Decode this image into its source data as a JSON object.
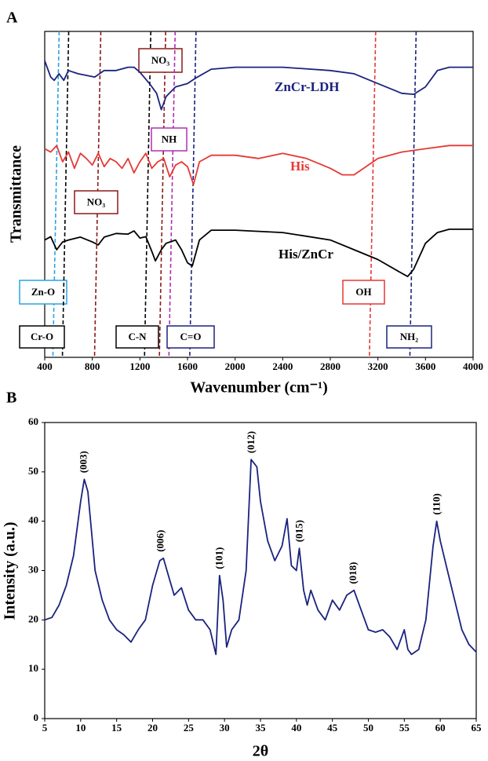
{
  "chart_data": [
    {
      "type": "line",
      "panel": "A",
      "xlabel": "Wavenumber (cm⁻¹)",
      "ylabel": "Transmittance",
      "xlim": [
        400,
        4000
      ],
      "xticks": [
        400,
        800,
        1200,
        1600,
        2000,
        2400,
        2800,
        3200,
        3600,
        4000
      ],
      "ylim": [
        0,
        100
      ],
      "series": [
        {
          "name": "ZnCr-LDH",
          "color": "#1a237e",
          "x": [
            400,
            450,
            480,
            520,
            560,
            600,
            680,
            820,
            900,
            1000,
            1100,
            1150,
            1200,
            1280,
            1340,
            1380,
            1420,
            1500,
            1600,
            1660,
            1800,
            2000,
            2400,
            2800,
            3000,
            3200,
            3400,
            3500,
            3600,
            3700,
            3800,
            4000
          ],
          "values": [
            91,
            86,
            85,
            87,
            85,
            88,
            87,
            86,
            88,
            88,
            89,
            89,
            87.5,
            84,
            81,
            76,
            80,
            83,
            84,
            85.5,
            88.4,
            89,
            89,
            88,
            87,
            84,
            81,
            80.7,
            83,
            88,
            89,
            89
          ]
        },
        {
          "name": "His",
          "color": "#e53935",
          "x": [
            400,
            450,
            500,
            550,
            600,
            650,
            700,
            750,
            800,
            850,
            900,
            950,
            1000,
            1050,
            1100,
            1150,
            1200,
            1250,
            1300,
            1350,
            1400,
            1450,
            1500,
            1550,
            1600,
            1650,
            1700,
            1800,
            2000,
            2200,
            2400,
            2600,
            2800,
            2900,
            3000,
            3100,
            3200,
            3400,
            3600,
            3800,
            4000
          ],
          "values": [
            64,
            63,
            65,
            60,
            63,
            58,
            62.6,
            61,
            59,
            62.6,
            58.5,
            61,
            60,
            58,
            61,
            56.6,
            60,
            62.6,
            58,
            60,
            61,
            55.4,
            59,
            60,
            58.5,
            53,
            60,
            62,
            62,
            61,
            62.6,
            61,
            58,
            56,
            56,
            58.5,
            61,
            63,
            64,
            65,
            65
          ]
        },
        {
          "name": "His/ZnCr",
          "color": "#000000",
          "x": [
            400,
            450,
            500,
            550,
            600,
            700,
            800,
            850,
            900,
            1000,
            1100,
            1150,
            1200,
            1250,
            1300,
            1330,
            1380,
            1420,
            1500,
            1550,
            1600,
            1640,
            1700,
            1800,
            2000,
            2400,
            2800,
            3000,
            3200,
            3400,
            3450,
            3500,
            3600,
            3700,
            3800,
            4000
          ],
          "values": [
            36,
            37,
            33,
            35.4,
            36,
            36.9,
            35.4,
            34.5,
            36.9,
            38,
            37.8,
            38.8,
            36.6,
            37,
            32.5,
            29.6,
            33,
            35,
            36,
            33,
            29,
            28,
            36,
            39,
            39,
            38.3,
            36,
            33,
            30,
            25.8,
            24.8,
            27,
            35,
            38.3,
            39.3,
            39.3
          ]
        }
      ],
      "annotations": [
        {
          "label": "Zn-O",
          "x": 495,
          "color": "#29a3e0"
        },
        {
          "label": "Cr-O",
          "x": 575,
          "color": "#000000"
        },
        {
          "label": "NO₃",
          "x": 845,
          "color": "#8b1a1a"
        },
        {
          "label": "C-N",
          "x": 1265,
          "color": "#000000"
        },
        {
          "label": "NO₃",
          "x": 1390,
          "color": "#8b1a1a"
        },
        {
          "label": "NH",
          "x": 1470,
          "color": "#b02eb0"
        },
        {
          "label": "C=O",
          "x": 1645,
          "color": "#1a237e"
        },
        {
          "label": "OH",
          "x": 3155,
          "color": "#e53935"
        },
        {
          "label": "NH₂",
          "x": 3495,
          "color": "#1a237e"
        }
      ]
    },
    {
      "type": "line",
      "panel": "B",
      "xlabel": "2θ",
      "ylabel": "Intensity (a.u.)",
      "xlim": [
        5,
        65
      ],
      "xticks": [
        5,
        10,
        15,
        20,
        25,
        30,
        35,
        40,
        45,
        50,
        55,
        60,
        65
      ],
      "ylim": [
        0,
        60
      ],
      "yticks": [
        0,
        10,
        20,
        30,
        40,
        50,
        60
      ],
      "series": [
        {
          "name": null,
          "color": "#1a237e",
          "x": [
            5,
            6,
            7,
            8,
            9,
            10,
            10.5,
            11,
            11.5,
            12,
            13,
            14,
            15,
            16,
            17,
            18,
            19,
            20,
            21,
            21.5,
            22,
            23,
            24,
            25,
            26,
            27,
            28,
            28.8,
            29.3,
            29.8,
            30.3,
            31,
            32,
            33,
            33.7,
            34.5,
            35,
            36,
            37,
            38,
            38.7,
            39.3,
            40,
            40.4,
            41,
            41.5,
            42,
            43,
            44,
            45,
            46,
            47,
            48,
            49,
            50,
            51,
            52,
            53,
            54,
            55,
            55.5,
            56,
            57,
            58,
            59,
            59.5,
            60,
            61,
            62,
            63,
            64,
            65
          ],
          "values": [
            20,
            20.5,
            23,
            27,
            33,
            44,
            48.5,
            46,
            38,
            30,
            24,
            20,
            18,
            17,
            15.5,
            18,
            20,
            27,
            32,
            32.5,
            30,
            25,
            26.5,
            22,
            20,
            20,
            18,
            13,
            29,
            24,
            14.5,
            18,
            20,
            30,
            52.5,
            51,
            44,
            36,
            32,
            35,
            40.5,
            31,
            30,
            34.5,
            26,
            23,
            26,
            22,
            20,
            24,
            22,
            25,
            26,
            22,
            18,
            17.5,
            18,
            16.5,
            14,
            18,
            14,
            13,
            14,
            20,
            35,
            40,
            36,
            30,
            24,
            18,
            15,
            13.5
          ]
        }
      ],
      "peaks": [
        {
          "label": "(003)",
          "x": 10.5,
          "y": 48.5
        },
        {
          "label": "(006)",
          "x": 21.2,
          "y": 32.5
        },
        {
          "label": "(101)",
          "x": 29.4,
          "y": 29
        },
        {
          "label": "(012)",
          "x": 33.8,
          "y": 52.5
        },
        {
          "label": "(015)",
          "x": 40.5,
          "y": 34.5
        },
        {
          "label": "(018)",
          "x": 48,
          "y": 26
        },
        {
          "label": "(110)",
          "x": 59.6,
          "y": 40
        }
      ]
    }
  ]
}
